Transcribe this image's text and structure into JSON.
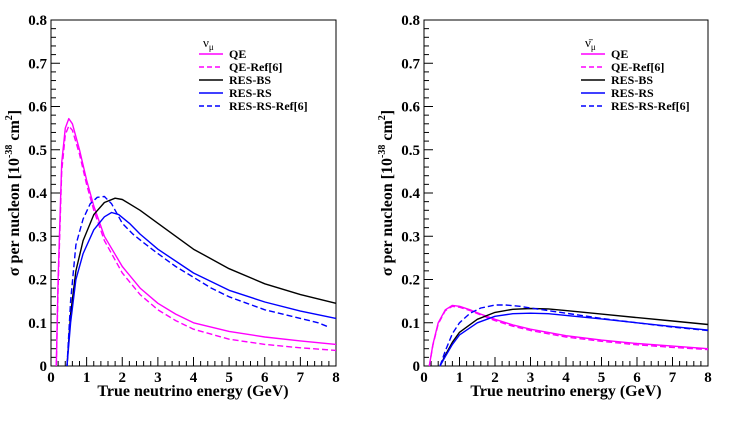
{
  "chart_data": [
    {
      "type": "line",
      "legend_header": "ν",
      "legend_header_sub": "μ",
      "xlabel": "True neutrino energy (GeV)",
      "ylabel_main": "σ per nucleon [10",
      "ylabel_exp": "-38",
      "ylabel_unit": " cm",
      "ylabel_unit_exp": "2",
      "ylabel_close": "]",
      "xlim": [
        0,
        8
      ],
      "ylim": [
        0,
        0.8
      ],
      "xticks": [
        0,
        1,
        2,
        3,
        4,
        5,
        6,
        7,
        8
      ],
      "yticks": [
        0,
        0.1,
        0.2,
        0.3,
        0.4,
        0.5,
        0.6,
        0.7,
        0.8
      ],
      "xtick_labels": [
        "0",
        "1",
        "2",
        "3",
        "4",
        "5",
        "6",
        "7",
        "8"
      ],
      "ytick_labels": [
        "0",
        "0.1",
        "0.2",
        "0.3",
        "0.4",
        "0.5",
        "0.6",
        "0.7",
        "0.8"
      ],
      "legend_position": "top-right",
      "series": [
        {
          "name": "QE",
          "color": "#ff00ff",
          "dash": "solid",
          "x": [
            0.15,
            0.2,
            0.3,
            0.4,
            0.5,
            0.6,
            0.8,
            1.0,
            1.2,
            1.5,
            2.0,
            2.5,
            3.0,
            3.5,
            4.0,
            5.0,
            6.0,
            7.0,
            8.0
          ],
          "y": [
            0.0,
            0.2,
            0.47,
            0.55,
            0.572,
            0.56,
            0.5,
            0.43,
            0.37,
            0.3,
            0.23,
            0.18,
            0.145,
            0.12,
            0.1,
            0.08,
            0.067,
            0.058,
            0.05
          ]
        },
        {
          "name": "QE-Ref[6]",
          "color": "#ff00ff",
          "dash": "dashed",
          "x": [
            0.15,
            0.2,
            0.3,
            0.4,
            0.5,
            0.6,
            0.8,
            1.0,
            1.2,
            1.5,
            2.0,
            2.5,
            3.0,
            3.5,
            4.0,
            5.0,
            6.0,
            7.0,
            8.0
          ],
          "y": [
            0.0,
            0.18,
            0.45,
            0.535,
            0.555,
            0.545,
            0.49,
            0.42,
            0.36,
            0.29,
            0.215,
            0.165,
            0.13,
            0.105,
            0.085,
            0.062,
            0.05,
            0.042,
            0.036
          ]
        },
        {
          "name": "RES-BS",
          "color": "#000000",
          "dash": "solid",
          "x": [
            0.45,
            0.55,
            0.7,
            0.9,
            1.2,
            1.5,
            1.8,
            2.0,
            2.5,
            3.0,
            4.0,
            5.0,
            6.0,
            7.0,
            8.0
          ],
          "y": [
            0.0,
            0.12,
            0.22,
            0.29,
            0.35,
            0.378,
            0.388,
            0.385,
            0.36,
            0.33,
            0.27,
            0.225,
            0.19,
            0.165,
            0.145
          ]
        },
        {
          "name": "RES-RS",
          "color": "#0000ff",
          "dash": "solid",
          "x": [
            0.45,
            0.55,
            0.7,
            0.9,
            1.2,
            1.5,
            1.7,
            1.9,
            2.2,
            2.5,
            3.0,
            4.0,
            5.0,
            6.0,
            7.0,
            8.0
          ],
          "y": [
            0.0,
            0.1,
            0.2,
            0.26,
            0.315,
            0.345,
            0.355,
            0.35,
            0.33,
            0.305,
            0.27,
            0.215,
            0.175,
            0.148,
            0.127,
            0.11
          ]
        },
        {
          "name": "RES-RS-Ref[6]",
          "color": "#0000ff",
          "dash": "dashed",
          "x": [
            0.45,
            0.55,
            0.7,
            0.9,
            1.1,
            1.3,
            1.5,
            1.7,
            2.0,
            2.3,
            2.6,
            3.0,
            3.5,
            4.0,
            4.5,
            5.0,
            5.5,
            6.0,
            6.5,
            7.0,
            7.5,
            7.8
          ],
          "y": [
            0.0,
            0.15,
            0.28,
            0.34,
            0.375,
            0.39,
            0.392,
            0.375,
            0.33,
            0.305,
            0.285,
            0.26,
            0.23,
            0.205,
            0.18,
            0.16,
            0.145,
            0.13,
            0.12,
            0.11,
            0.1,
            0.09
          ]
        }
      ]
    },
    {
      "type": "line",
      "legend_header": "ν̄",
      "legend_header_sub": "μ",
      "xlabel": "True neutrino energy (GeV)",
      "ylabel_main": "σ per nucleon [10",
      "ylabel_exp": "-38",
      "ylabel_unit": " cm",
      "ylabel_unit_exp": "2",
      "ylabel_close": "]",
      "xlim": [
        0,
        8
      ],
      "ylim": [
        0,
        0.8
      ],
      "xticks": [
        0,
        1,
        2,
        3,
        4,
        5,
        6,
        7,
        8
      ],
      "yticks": [
        0,
        0.1,
        0.2,
        0.3,
        0.4,
        0.5,
        0.6,
        0.7,
        0.8
      ],
      "xtick_labels": [
        "0",
        "1",
        "2",
        "3",
        "4",
        "5",
        "6",
        "7",
        "8"
      ],
      "ytick_labels": [
        "0",
        "0.1",
        "0.2",
        "0.3",
        "0.4",
        "0.5",
        "0.6",
        "0.7",
        "0.8"
      ],
      "legend_position": "top-right",
      "series": [
        {
          "name": "QE",
          "color": "#ff00ff",
          "dash": "solid",
          "x": [
            0.15,
            0.25,
            0.4,
            0.6,
            0.8,
            1.0,
            1.3,
            1.6,
            2.0,
            2.5,
            3.0,
            4.0,
            5.0,
            6.0,
            7.0,
            8.0
          ],
          "y": [
            0.0,
            0.05,
            0.1,
            0.13,
            0.14,
            0.138,
            0.13,
            0.12,
            0.108,
            0.095,
            0.085,
            0.07,
            0.06,
            0.052,
            0.046,
            0.04
          ]
        },
        {
          "name": "QE-Ref[6]",
          "color": "#ff00ff",
          "dash": "dashed",
          "x": [
            0.15,
            0.25,
            0.4,
            0.6,
            0.8,
            1.0,
            1.3,
            1.6,
            2.0,
            2.5,
            3.0,
            4.0,
            5.0,
            6.0,
            7.0,
            8.0
          ],
          "y": [
            0.0,
            0.048,
            0.097,
            0.128,
            0.138,
            0.136,
            0.128,
            0.118,
            0.105,
            0.092,
            0.082,
            0.067,
            0.057,
            0.049,
            0.043,
            0.038
          ]
        },
        {
          "name": "RES-BS",
          "color": "#000000",
          "dash": "solid",
          "x": [
            0.45,
            0.6,
            0.8,
            1.0,
            1.5,
            2.0,
            2.5,
            3.0,
            3.5,
            4.0,
            5.0,
            6.0,
            7.0,
            8.0
          ],
          "y": [
            0.0,
            0.025,
            0.055,
            0.078,
            0.108,
            0.124,
            0.131,
            0.133,
            0.132,
            0.128,
            0.12,
            0.112,
            0.104,
            0.096
          ]
        },
        {
          "name": "RES-RS",
          "color": "#0000ff",
          "dash": "solid",
          "x": [
            0.45,
            0.6,
            0.8,
            1.0,
            1.5,
            2.0,
            2.5,
            3.0,
            3.5,
            4.0,
            5.0,
            6.0,
            7.0,
            8.0
          ],
          "y": [
            0.0,
            0.022,
            0.05,
            0.072,
            0.1,
            0.115,
            0.121,
            0.122,
            0.121,
            0.117,
            0.109,
            0.1,
            0.091,
            0.083
          ]
        },
        {
          "name": "RES-RS-Ref[6]",
          "color": "#0000ff",
          "dash": "dashed",
          "x": [
            0.45,
            0.6,
            0.8,
            1.0,
            1.3,
            1.6,
            2.0,
            2.3,
            2.7,
            3.0,
            3.5,
            4.0,
            5.0,
            6.0,
            7.0,
            8.0
          ],
          "y": [
            0.0,
            0.035,
            0.075,
            0.1,
            0.122,
            0.134,
            0.141,
            0.141,
            0.138,
            0.134,
            0.128,
            0.122,
            0.11,
            0.1,
            0.09,
            0.082
          ]
        }
      ]
    }
  ]
}
